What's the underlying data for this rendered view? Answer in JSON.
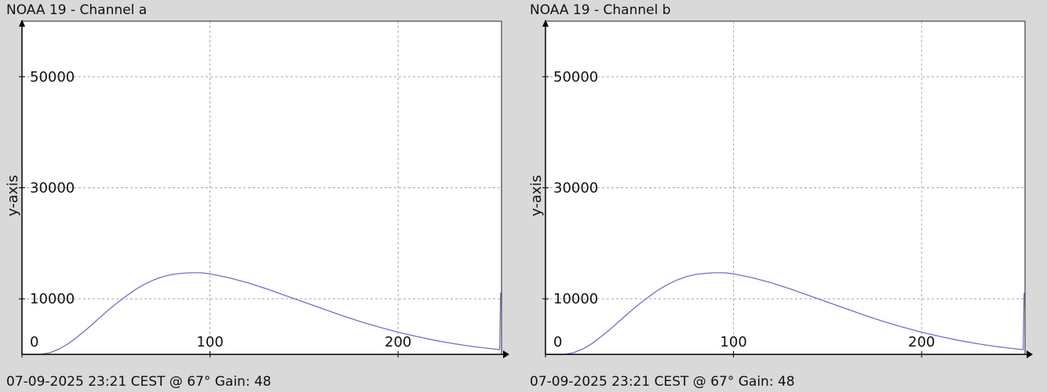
{
  "charts": [
    {
      "title": "NOAA 19 - Channel a",
      "footer": "07-09-2025 23:21 CEST @ 67° Gain: 48"
    },
    {
      "title": "NOAA 19 - Channel b",
      "footer": "07-09-2025 23:21 CEST @ 67° Gain: 48"
    }
  ],
  "chart_data": [
    {
      "type": "line",
      "title": "NOAA 19 - Channel a",
      "xlabel": "",
      "ylabel": "y-axis",
      "xlim": [
        0,
        255
      ],
      "ylim": [
        0,
        60000
      ],
      "xticks": [
        0,
        100,
        200
      ],
      "yticks": [
        10000,
        30000,
        50000
      ],
      "xtick_labels": [
        "0",
        "100",
        "200"
      ],
      "ytick_labels": [
        "10000",
        "30000",
        "50000"
      ],
      "grid": true,
      "series": [
        {
          "color": "#7070c8",
          "x": [
            0,
            10,
            15,
            20,
            25,
            30,
            35,
            40,
            45,
            50,
            55,
            60,
            65,
            70,
            75,
            80,
            85,
            90,
            95,
            100,
            110,
            120,
            130,
            140,
            150,
            160,
            170,
            180,
            190,
            200,
            210,
            220,
            230,
            240,
            250,
            254,
            254.5,
            255
          ],
          "y": [
            0,
            0,
            300,
            1000,
            2000,
            3300,
            4700,
            6200,
            7700,
            9100,
            10400,
            11600,
            12600,
            13400,
            14000,
            14400,
            14600,
            14700,
            14700,
            14500,
            13800,
            12900,
            11800,
            10600,
            9400,
            8200,
            7000,
            5900,
            4900,
            4000,
            3200,
            2500,
            1900,
            1400,
            1000,
            850,
            11000,
            11000
          ]
        }
      ]
    },
    {
      "type": "line",
      "title": "NOAA 19 - Channel b",
      "xlabel": "",
      "ylabel": "y-axis",
      "xlim": [
        0,
        255
      ],
      "ylim": [
        0,
        60000
      ],
      "xticks": [
        0,
        100,
        200
      ],
      "yticks": [
        10000,
        30000,
        50000
      ],
      "xtick_labels": [
        "0",
        "100",
        "200"
      ],
      "ytick_labels": [
        "10000",
        "30000",
        "50000"
      ],
      "grid": true,
      "series": [
        {
          "color": "#7070c8",
          "x": [
            0,
            10,
            15,
            20,
            25,
            30,
            35,
            40,
            45,
            50,
            55,
            60,
            65,
            70,
            75,
            80,
            85,
            90,
            95,
            100,
            110,
            120,
            130,
            140,
            150,
            160,
            170,
            180,
            190,
            200,
            210,
            220,
            230,
            240,
            250,
            254,
            254.5,
            255
          ],
          "y": [
            0,
            0,
            300,
            1000,
            2000,
            3300,
            4700,
            6200,
            7700,
            9100,
            10400,
            11600,
            12600,
            13400,
            14000,
            14400,
            14600,
            14700,
            14700,
            14500,
            13800,
            12900,
            11800,
            10600,
            9400,
            8200,
            7000,
            5900,
            4900,
            4000,
            3200,
            2500,
            1900,
            1400,
            1000,
            850,
            11000,
            11000
          ]
        }
      ]
    }
  ]
}
